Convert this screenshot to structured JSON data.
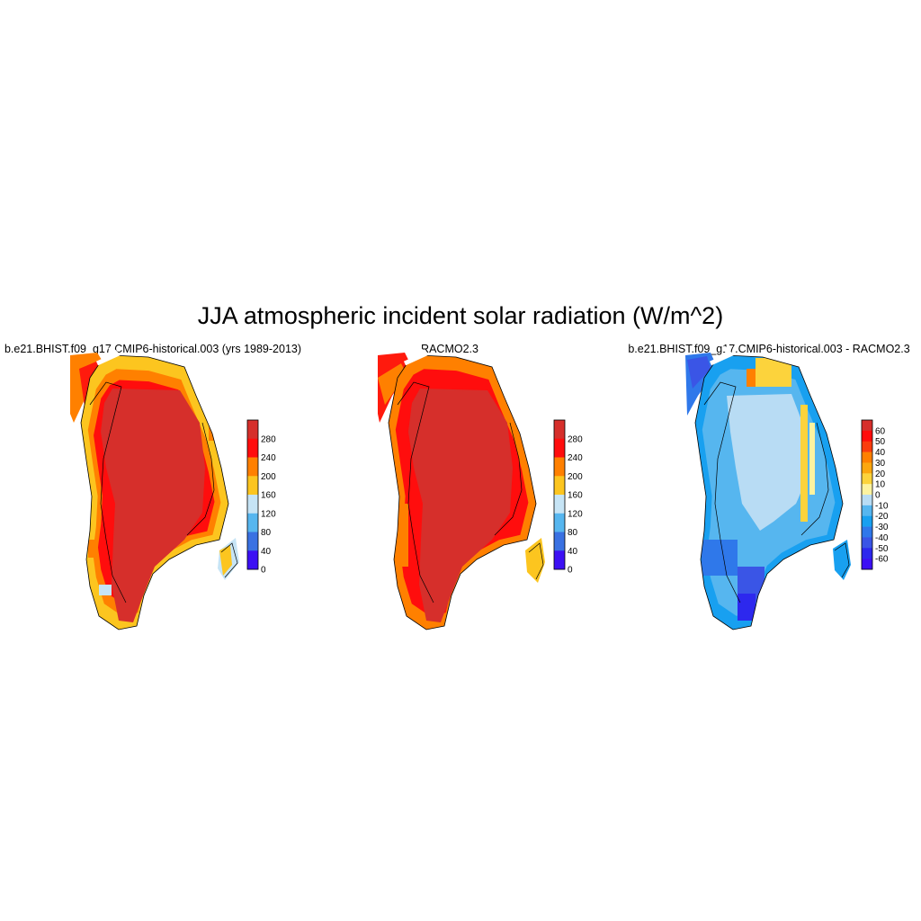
{
  "title": "JJA atmospheric incident solar radiation (W/m^2)",
  "panels": [
    {
      "id": "model",
      "title": "b.e21.BHIST.f09_g17.CMIP6-historical.003 (yrs 1989-2013)",
      "colorbar": {
        "labels": [
          "280",
          "240",
          "200",
          "160",
          "120",
          "80",
          "40",
          "0"
        ],
        "colors": [
          "#d62f2b",
          "#ff0d0d",
          "#ff8000",
          "#fcc51f",
          "#c6e4f5",
          "#56b6ef",
          "#3a71e2",
          "#3c10f4"
        ]
      }
    },
    {
      "id": "racmo",
      "title": "RACMO2.3",
      "colorbar": {
        "labels": [
          "280",
          "240",
          "200",
          "160",
          "120",
          "80",
          "40",
          "0"
        ],
        "colors": [
          "#d62f2b",
          "#ff0d0d",
          "#ff8000",
          "#fcc51f",
          "#c6e4f5",
          "#56b6ef",
          "#3a71e2",
          "#3c10f4"
        ]
      }
    },
    {
      "id": "difference",
      "title": "b.e21.BHIST.f09_g17.CMIP6-historical.003 - RACMO2.3",
      "colorbar": {
        "labels": [
          "60",
          "50",
          "40",
          "30",
          "20",
          "10",
          "0",
          "-10",
          "-20",
          "-30",
          "-40",
          "-50",
          "-60"
        ],
        "colors": [
          "#d62f2b",
          "#ff0d0d",
          "#fa3d0e",
          "#ff8000",
          "#fca70f",
          "#fcd33c",
          "#fdf3a0",
          "#b8dcf4",
          "#56b6ef",
          "#18a0f0",
          "#2f78ea",
          "#3a55e6",
          "#2d28ee",
          "#3c10f4"
        ]
      }
    }
  ]
}
